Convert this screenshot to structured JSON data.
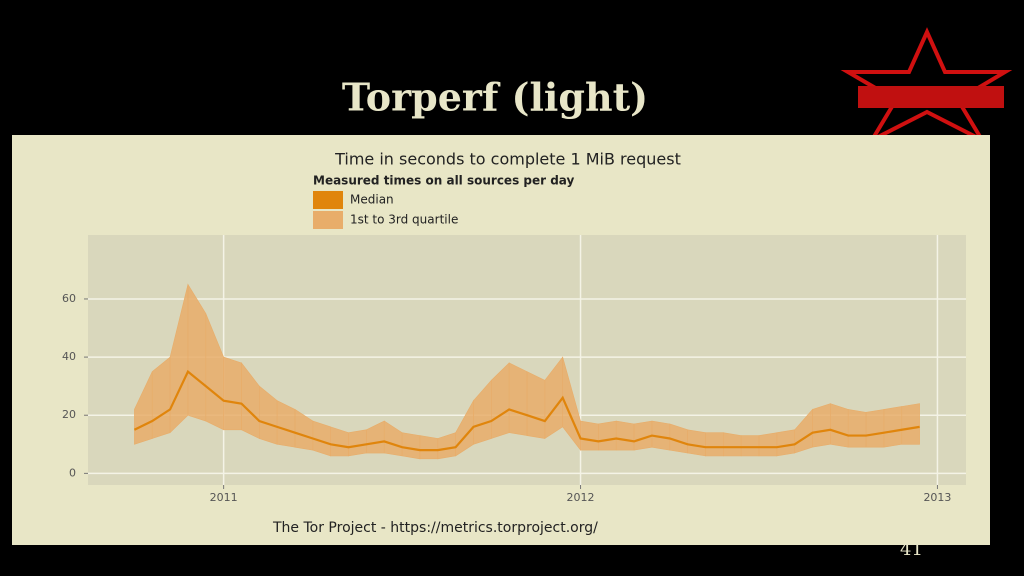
{
  "slide_title": "Torperf (light)",
  "page_number": "41",
  "footer": "The Tor Project - https://metrics.torproject.org/",
  "chart_data": {
    "type": "line",
    "title": "Time in seconds to complete 1 MiB request",
    "legend_title": "Measured times on all sources per day",
    "x": [
      2010.75,
      2010.8,
      2010.85,
      2010.9,
      2010.95,
      2011.0,
      2011.05,
      2011.1,
      2011.15,
      2011.2,
      2011.25,
      2011.3,
      2011.35,
      2011.4,
      2011.45,
      2011.5,
      2011.55,
      2011.6,
      2011.65,
      2011.7,
      2011.75,
      2011.8,
      2011.85,
      2011.9,
      2011.95,
      2012.0,
      2012.05,
      2012.1,
      2012.15,
      2012.2,
      2012.25,
      2012.3,
      2012.35,
      2012.4,
      2012.45,
      2012.5,
      2012.55,
      2012.6,
      2012.65,
      2012.7,
      2012.75,
      2012.8,
      2012.85,
      2012.9,
      2012.95
    ],
    "series": [
      {
        "name": "Median",
        "color": "#e0850c",
        "values": [
          15,
          18,
          22,
          35,
          30,
          25,
          24,
          18,
          16,
          14,
          12,
          10,
          9,
          10,
          11,
          9,
          8,
          8,
          9,
          16,
          18,
          22,
          20,
          18,
          26,
          12,
          11,
          12,
          11,
          13,
          12,
          10,
          9,
          9,
          9,
          9,
          9,
          10,
          14,
          15,
          13,
          13,
          14,
          15,
          16
        ]
      },
      {
        "name": "1st to 3rd quartile",
        "color": "#e8ad6a",
        "low": [
          10,
          12,
          14,
          20,
          18,
          15,
          15,
          12,
          10,
          9,
          8,
          6,
          6,
          7,
          7,
          6,
          5,
          5,
          6,
          10,
          12,
          14,
          13,
          12,
          16,
          8,
          8,
          8,
          8,
          9,
          8,
          7,
          6,
          6,
          6,
          6,
          6,
          7,
          9,
          10,
          9,
          9,
          9,
          10,
          10
        ],
        "high": [
          22,
          35,
          40,
          65,
          55,
          40,
          38,
          30,
          25,
          22,
          18,
          16,
          14,
          15,
          18,
          14,
          13,
          12,
          14,
          25,
          32,
          38,
          35,
          32,
          40,
          18,
          17,
          18,
          17,
          18,
          17,
          15,
          14,
          14,
          13,
          13,
          14,
          15,
          22,
          24,
          22,
          21,
          22,
          23,
          24
        ]
      }
    ],
    "xlim": [
      2010.62,
      2013.08
    ],
    "xticks": [
      2011,
      2012,
      2013
    ],
    "ylim": [
      -4,
      82
    ],
    "yticks": [
      0,
      20,
      40,
      60
    ],
    "grid": true
  }
}
